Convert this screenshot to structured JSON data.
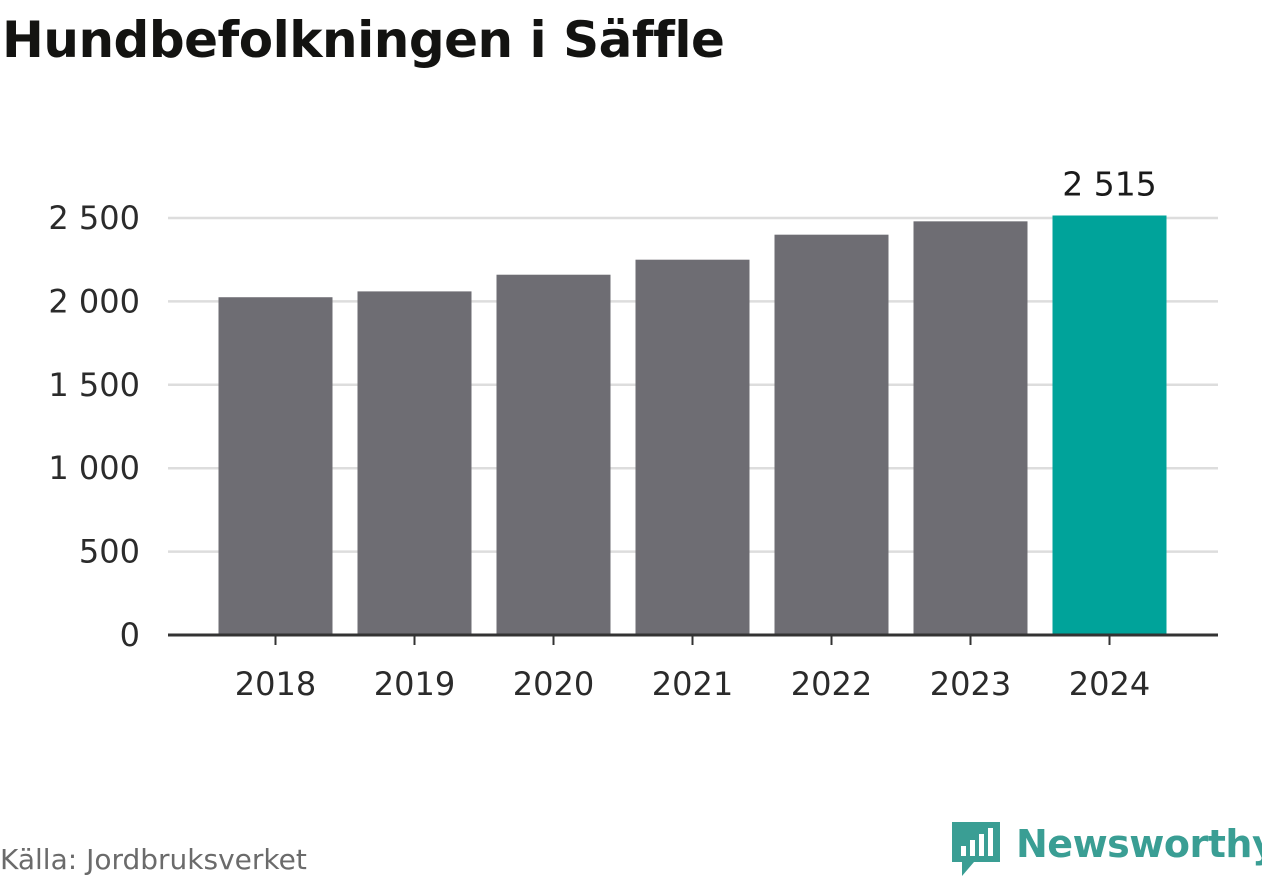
{
  "chart_data": {
    "type": "bar",
    "title": "Hundbefolkningen i Säffle",
    "categories": [
      "2018",
      "2019",
      "2020",
      "2021",
      "2022",
      "2023",
      "2024"
    ],
    "values": [
      2025,
      2060,
      2160,
      2250,
      2400,
      2480,
      2515
    ],
    "highlight_category": "2024",
    "highlight_value_label": "2 515",
    "yticks": [
      0,
      500,
      1000,
      1500,
      2000,
      2500
    ],
    "ytick_labels": [
      "0",
      "500",
      "1 000",
      "1 500",
      "2 000",
      "2 500"
    ],
    "ylim": [
      0,
      2500
    ],
    "xlabel": "",
    "ylabel": "",
    "grid": true,
    "legend": "none",
    "colors": {
      "bar": "#6e6d73",
      "highlight": "#00a39a",
      "grid": "#dddddd",
      "axis": "#333333"
    }
  },
  "footer": {
    "source": "Källa: Jordbruksverket",
    "brand_name": "Newsworthy",
    "brand_icon": "bar-chart-speech-bubble-icon",
    "brand_color": "#3a9e94"
  }
}
